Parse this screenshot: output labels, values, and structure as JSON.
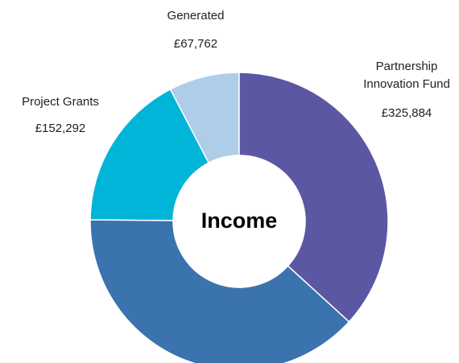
{
  "chart_data": {
    "type": "donut",
    "title": "Income",
    "categories": [
      "Partnership Innovation Fund",
      null,
      "Project Grants",
      "Generated"
    ],
    "values": [
      325884,
      340000,
      152292,
      67762
    ],
    "value_labels": [
      "£325,884",
      null,
      "£152,292",
      "£67,762"
    ],
    "colors": [
      "#5b57a3",
      "#3a73ad",
      "#00b5d8",
      "#aecde8"
    ]
  }
}
